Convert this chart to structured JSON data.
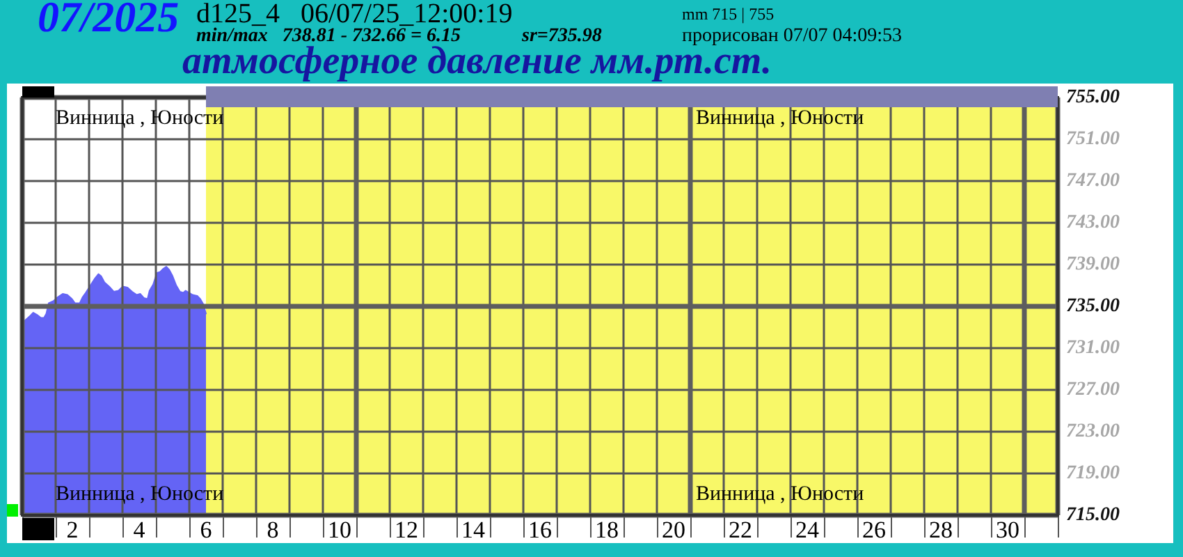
{
  "chart_data": {
    "type": "area",
    "title": "атмосферное давление мм.рт.ст.",
    "annotations": [
      "07/2025",
      "d125_4   06/07/25_12:00:19",
      "min/max   738.81 - 732.66 = 6.15",
      "sr=735.98",
      "mm 715 | 755",
      "прорисован 07/07 04:09:53",
      "Винница , Юности",
      "Винница , Юности",
      "Винница , Юности",
      "Винница , Юности"
    ],
    "x": [
      0.5,
      0.53,
      0.6,
      0.74,
      0.83,
      0.94,
      1.06,
      1.15,
      1.22,
      1.29,
      1.43,
      1.57,
      1.71,
      1.85,
      1.99,
      2.08,
      2.22,
      2.31,
      2.4,
      2.54,
      2.68,
      2.78,
      2.86,
      2.96,
      3.1,
      3.24,
      3.38,
      3.51,
      3.65,
      3.79,
      3.93,
      4.03,
      4.14,
      4.25,
      4.31,
      4.42,
      4.53,
      4.63,
      4.72,
      4.81,
      4.9,
      5.0,
      5.11,
      5.22,
      5.32,
      5.39,
      5.5,
      5.6,
      5.74,
      5.83,
      5.92,
      6.0
    ],
    "values": [
      733.4,
      733.5,
      733.7,
      734.1,
      734.4,
      734.2,
      733.9,
      733.9,
      734.3,
      735.3,
      735.5,
      735.9,
      736.2,
      736.1,
      735.7,
      735.3,
      735.3,
      735.9,
      736.3,
      737.0,
      737.7,
      738.1,
      737.9,
      737.3,
      736.9,
      736.4,
      736.5,
      736.9,
      736.8,
      736.4,
      736.1,
      736.2,
      735.8,
      735.7,
      736.5,
      737.1,
      738.2,
      738.3,
      738.6,
      738.8,
      738.5,
      737.9,
      737.0,
      736.4,
      736.3,
      736.5,
      736.3,
      736.1,
      736.0,
      735.7,
      735.2,
      734.3
    ],
    "color": "#6464f5",
    "xlim": [
      0.5,
      31.5
    ],
    "xticks": [
      {
        "value": 0.5,
        "label": null
      },
      {
        "value": 1.5,
        "label": null
      },
      2,
      {
        "value": 2.5,
        "label": null
      },
      {
        "value": 3.5,
        "label": null
      },
      4,
      {
        "value": 4.5,
        "label": null
      },
      {
        "value": 5.5,
        "label": null
      },
      6,
      {
        "value": 6.5,
        "label": null
      },
      {
        "value": 7.5,
        "label": null
      },
      8,
      {
        "value": 8.5,
        "label": null
      },
      {
        "value": 9.5,
        "label": null
      },
      10,
      {
        "value": 10.5,
        "label": null
      },
      {
        "value": 11.5,
        "label": null
      },
      12,
      {
        "value": 12.5,
        "label": null
      },
      {
        "value": 13.5,
        "label": null
      },
      14,
      {
        "value": 14.5,
        "label": null
      },
      {
        "value": 15.5,
        "label": null
      },
      16,
      {
        "value": 16.5,
        "label": null
      },
      {
        "value": 17.5,
        "label": null
      },
      18,
      {
        "value": 18.5,
        "label": null
      },
      {
        "value": 19.5,
        "label": null
      },
      20,
      {
        "value": 20.5,
        "label": null
      },
      {
        "value": 21.5,
        "label": null
      },
      22,
      {
        "value": 22.5,
        "label": null
      },
      {
        "value": 23.5,
        "label": null
      },
      24,
      {
        "value": 24.5,
        "label": null
      },
      {
        "value": 25.5,
        "label": null
      },
      26,
      {
        "value": 26.5,
        "label": null
      },
      {
        "value": 27.5,
        "label": null
      },
      28,
      {
        "value": 28.5,
        "label": null
      },
      {
        "value": 29.5,
        "label": null
      },
      30,
      {
        "value": 30.5,
        "label": null
      },
      {
        "value": 31.5,
        "label": null
      }
    ],
    "ylim": [
      715,
      755
    ],
    "yticks": [
      {
        "value": 715,
        "label": "715.00"
      },
      {
        "value": 719,
        "label": "719.00"
      },
      {
        "value": 723,
        "label": "723.00"
      },
      {
        "value": 727,
        "label": "727.00"
      },
      {
        "value": 731,
        "label": "731.00"
      },
      {
        "value": 735,
        "label": "735.00"
      },
      {
        "value": 739,
        "label": "739.00"
      },
      {
        "value": 743,
        "label": "743.00"
      },
      {
        "value": 747,
        "label": "747.00"
      },
      {
        "value": 751,
        "label": "751.00"
      },
      {
        "value": 755,
        "label": "755.00"
      }
    ],
    "grid": true,
    "marker": "none",
    "bands": [
      {
        "axis": "x",
        "from": 6,
        "to": 31.5,
        "color": "#f8f868"
      }
    ]
  }
}
